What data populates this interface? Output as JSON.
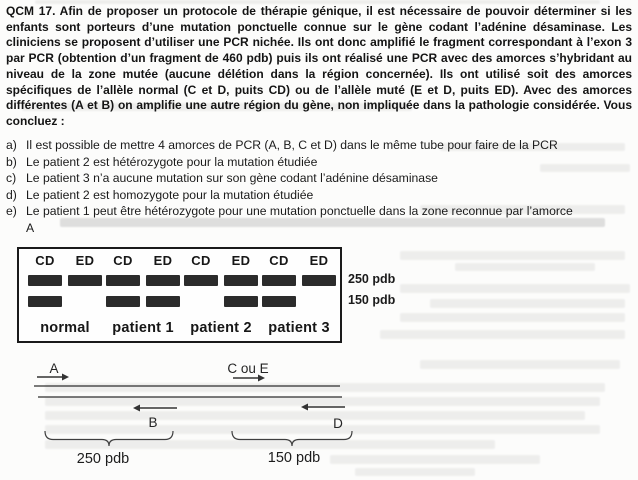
{
  "question": {
    "paragraph": "QCM 17. Afin de proposer un protocole de thérapie génique, il est nécessaire de pouvoir déterminer si les enfants sont porteurs d’une mutation ponctuelle connue sur le gène codant l’adénine désaminase. Les cliniciens se proposent d’utiliser une PCR nichée. Ils ont donc amplifié le fragment correspondant à l’exon 3 par PCR (obtention d’un fragment de 460 pdb) puis ils ont réalisé une PCR avec des amorces s’hybridant au niveau de la zone mutée (aucune délétion dans la région concernée). Ils ont utilisé soit des amorces spécifiques de l’allèle normal (C et D, puits CD) ou de l’allèle muté (E et D, puits ED). Avec des amorces différentes (A et B) on amplifie une autre région du gène, non impliquée dans la pathologie considérée. Vous concluez :",
    "options": [
      {
        "label": "a)",
        "text": "Il est possible de mettre 4 amorces de PCR (A, B, C et D) dans le même tube pour faire de la PCR"
      },
      {
        "label": "b)",
        "text": "Le patient 2 est hétérozygote pour la mutation étudiée"
      },
      {
        "label": "c)",
        "text": "Le patient 3 n’a aucune mutation sur son gène codant l’adénine désaminase"
      },
      {
        "label": "d)",
        "text": "Le patient 2 est homozygote pour la mutation étudiée"
      },
      {
        "label": "e)",
        "text": "Le patient 1 peut être hétérozygote pour une mutation ponctuelle dans la zone reconnue par l’amorce",
        "text2": "A"
      }
    ]
  },
  "gel": {
    "size_labels": [
      "250 pdb",
      "150 pdb"
    ],
    "band_sizes": [
      250,
      150
    ],
    "groups": [
      {
        "name": "normal",
        "lanes": [
          {
            "label": "CD",
            "bands": [
              250,
              150
            ]
          },
          {
            "label": "ED",
            "bands": [
              250
            ]
          }
        ]
      },
      {
        "name": "patient 1",
        "lanes": [
          {
            "label": "CD",
            "bands": [
              250,
              150
            ]
          },
          {
            "label": "ED",
            "bands": [
              250,
              150
            ]
          }
        ]
      },
      {
        "name": "patient 2",
        "lanes": [
          {
            "label": "CD",
            "bands": [
              250
            ]
          },
          {
            "label": "ED",
            "bands": [
              250,
              150
            ]
          }
        ]
      },
      {
        "name": "patient 3",
        "lanes": [
          {
            "label": "CD",
            "bands": [
              250,
              150
            ]
          },
          {
            "label": "ED",
            "bands": [
              250
            ]
          }
        ]
      }
    ]
  },
  "primer_map": {
    "labels": {
      "a": "A",
      "ce": "C ou E",
      "b": "B",
      "d": "D"
    },
    "segments": [
      {
        "label": "250 pdb"
      },
      {
        "label": "150 pdb"
      }
    ]
  },
  "colors": {
    "band": "#2b2b2b",
    "ink": "#171717"
  }
}
